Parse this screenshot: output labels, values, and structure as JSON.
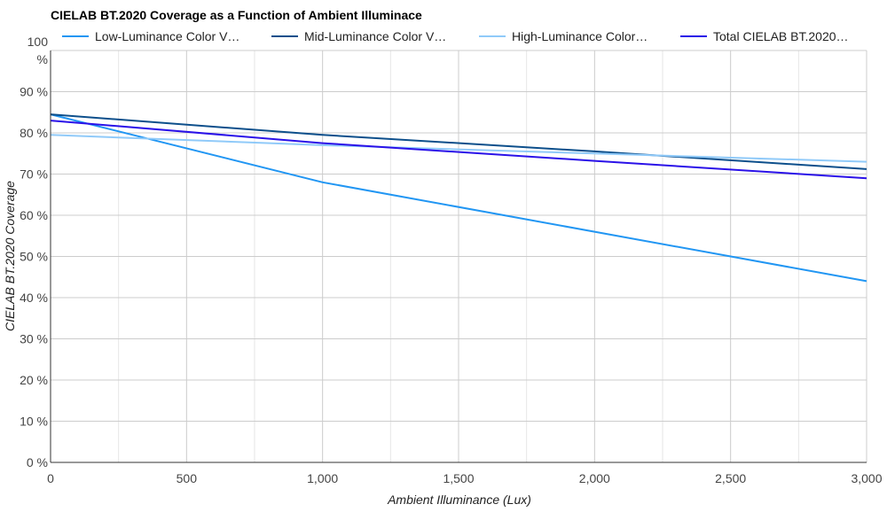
{
  "chart_data": {
    "type": "line",
    "title": "CIELAB BT.2020 Coverage as a Function of Ambient Illuminace",
    "xlabel": "Ambient Illuminance (Lux)",
    "ylabel": "CIELAB BT.2020 Coverage",
    "xlim": [
      0,
      3000
    ],
    "ylim": [
      0,
      100
    ],
    "x_ticks": [
      0,
      500,
      1000,
      1500,
      2000,
      2500,
      3000
    ],
    "x_tick_labels": [
      "0",
      "500",
      "1,000",
      "1,500",
      "2,000",
      "2,500",
      "3,000"
    ],
    "y_ticks": [
      0,
      10,
      20,
      30,
      40,
      50,
      60,
      70,
      80,
      90,
      100
    ],
    "y_tick_labels": [
      "0 %",
      "10 %",
      "20 %",
      "30 %",
      "40 %",
      "50 %",
      "60 %",
      "70 %",
      "80 %",
      "90 %",
      "100 %"
    ],
    "grid": true,
    "legend_position": "top",
    "series": [
      {
        "name": "Low-Luminance Color V…",
        "color": "#2196f3",
        "x": [
          0,
          1000,
          2000,
          3000
        ],
        "values": [
          84.5,
          68,
          56,
          44
        ]
      },
      {
        "name": "Mid-Luminance Color V…",
        "color": "#0d4f8b",
        "x": [
          0,
          1000,
          2000,
          3000
        ],
        "values": [
          84.5,
          79.5,
          75.5,
          71.2
        ]
      },
      {
        "name": "High-Luminance Color…",
        "color": "#90caf9",
        "x": [
          0,
          1000,
          2000,
          3000
        ],
        "values": [
          79.5,
          77,
          75,
          73
        ]
      },
      {
        "name": "Total CIELAB BT.2020…",
        "color": "#2a11e8",
        "x": [
          0,
          1000,
          2000,
          3000
        ],
        "values": [
          83,
          77.5,
          73.2,
          69
        ]
      }
    ]
  }
}
